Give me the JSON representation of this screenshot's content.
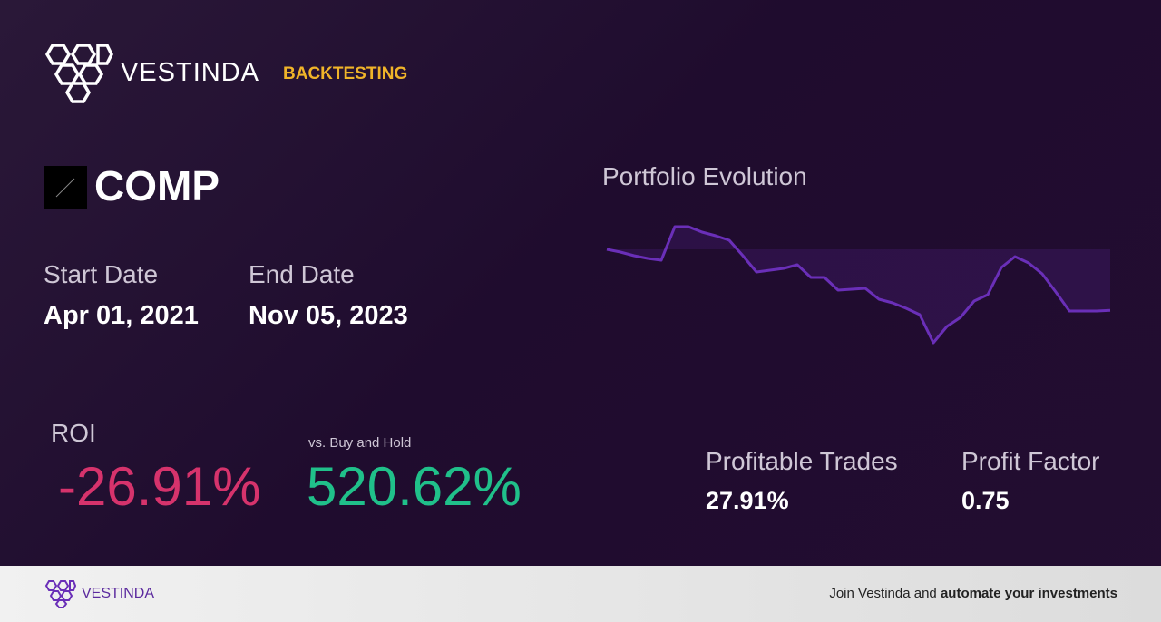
{
  "header": {
    "brand": "VESTINDA",
    "section": "BACKTESTING"
  },
  "asset": {
    "symbol": "COMP"
  },
  "dates": {
    "start_label": "Start Date",
    "start": "Apr 01, 2021",
    "end_label": "End Date",
    "end": "Nov 05, 2023"
  },
  "roi": {
    "label": "ROI",
    "value": "-26.91%",
    "vs_label": "vs. Buy and Hold",
    "vs_value": "520.62%"
  },
  "stats": {
    "profitable_label": "Profitable Trades",
    "profitable": "27.91%",
    "pf_label": "Profit Factor",
    "pf": "0.75"
  },
  "chart_data": {
    "type": "line",
    "title": "Portfolio Evolution",
    "values": [
      0,
      -1.2,
      -2.8,
      -4,
      -4.8,
      10,
      10,
      7.6,
      6,
      4,
      -2.8,
      -10,
      -9.2,
      -8.4,
      -6.8,
      -12.4,
      -12.4,
      -18,
      -17.6,
      -17.2,
      -22,
      -23.6,
      -26,
      -28.8,
      -41.2,
      -34,
      -30,
      -22.8,
      -20,
      -8,
      -3.2,
      -6,
      -10.8,
      -18.8,
      -27.2,
      -27.2,
      -27.2,
      -26.91
    ],
    "ylim": [
      -50,
      18
    ],
    "color": "#6a2fb8"
  },
  "footer": {
    "brand": "VESTINDA",
    "text": "Join Vestinda and",
    "cta": "automate your investments"
  }
}
